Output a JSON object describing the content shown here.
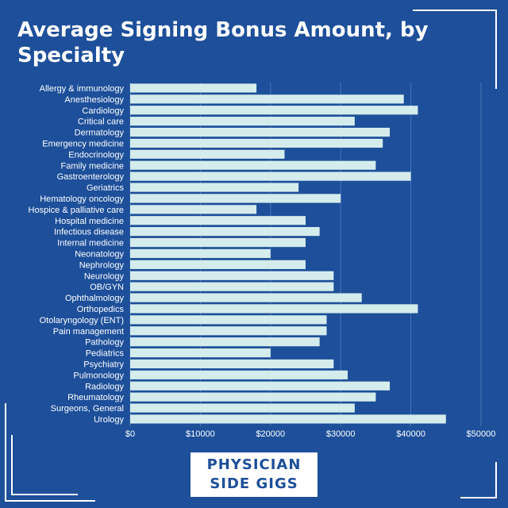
{
  "chart_data": {
    "type": "bar",
    "orientation": "horizontal",
    "title": "Average Signing Bonus Amount, by Specialty",
    "categories": [
      "Allergy & immunology",
      "Anesthesiology",
      "Cardiology",
      "Critical care",
      "Dermatology",
      "Emergency medicine",
      "Endocrinology",
      "Family medicine",
      "Gastroenterology",
      "Geriatrics",
      "Hematology oncology",
      "Hospice & palliative care",
      "Hospital medicine",
      "Infectious disease",
      "Internal medicine",
      "Neonatology",
      "Nephrology",
      "Neurology",
      "OB/GYN",
      "Ophthalmology",
      "Orthopedics",
      "Otolaryngology (ENT)",
      "Pain management",
      "Pathology",
      "Pediatrics",
      "Psychiatry",
      "Pulmonology",
      "Radiology",
      "Rheumatology",
      "Surgeons, General",
      "Urology"
    ],
    "values": [
      18000,
      39000,
      41000,
      32000,
      37000,
      36000,
      22000,
      35000,
      40000,
      24000,
      30000,
      18000,
      25000,
      27000,
      25000,
      20000,
      25000,
      29000,
      29000,
      33000,
      41000,
      28000,
      28000,
      27000,
      20000,
      29000,
      31000,
      37000,
      35000,
      32000,
      45000
    ],
    "xlim": [
      0,
      50000
    ],
    "xticks": [
      0,
      10000,
      20000,
      30000,
      40000,
      50000
    ],
    "xtick_labels": [
      "$0",
      "$10000",
      "$20000",
      "$30000",
      "$40000",
      "$50000"
    ],
    "grid": true,
    "bar_color": "#d4ecec",
    "xlabel": "",
    "ylabel": ""
  },
  "brand": {
    "line1": "PHYSICIAN",
    "line2": "SIDE GIGS"
  },
  "colors": {
    "background": "#1d4f9a",
    "text": "#ffffff",
    "bar": "#d4ecec",
    "grid": "#4a74b4"
  }
}
